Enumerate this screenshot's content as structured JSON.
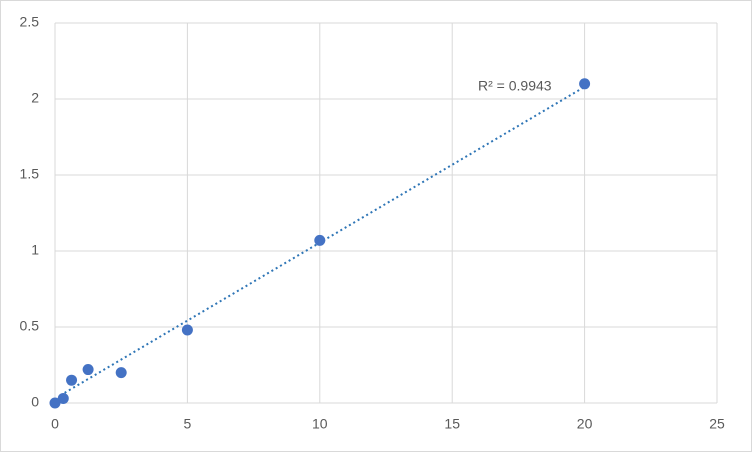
{
  "chart_data": {
    "type": "scatter",
    "series": [
      {
        "color": "#4472c4",
        "x": [
          0,
          0.3125,
          0.625,
          1.25,
          2.5,
          5,
          10,
          20
        ],
        "values": [
          0,
          0.03,
          0.15,
          0.22,
          0.2,
          0.48,
          1.07,
          2.1
        ]
      }
    ],
    "trendline": {
      "color": "#2e75b6",
      "x": [
        0.2,
        20
      ],
      "values": [
        0.05,
        2.08
      ]
    },
    "annotation": "R² = 0.9943",
    "xlim": [
      0,
      25
    ],
    "xticks": [
      0,
      5,
      10,
      15,
      20,
      25
    ],
    "ylim": [
      0,
      2.5
    ],
    "yticks": [
      0,
      0.5,
      1,
      1.5,
      2,
      2.5
    ],
    "grid": true
  }
}
